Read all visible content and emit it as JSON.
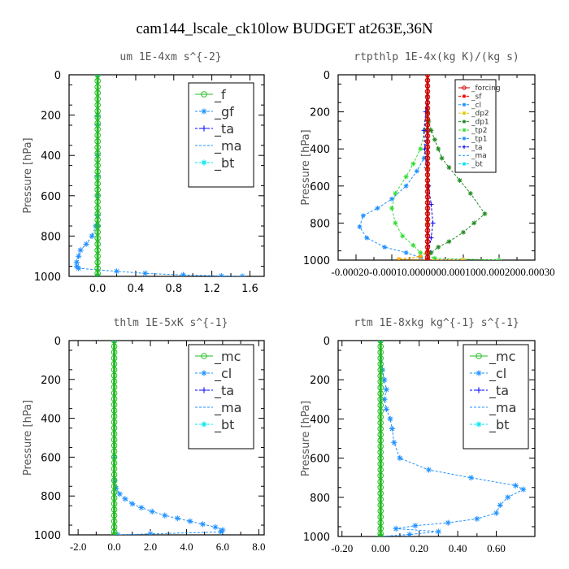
{
  "figure_title": "cam144_lscale_ck10low  BUDGET at263E,36N",
  "chart_data": [
    {
      "type": "line",
      "title": "um  1E-4xm s^{-2}",
      "ylabel": "Pressure [hPa]",
      "ylim": [
        1000,
        0
      ],
      "xlim": [
        -0.3,
        1.75
      ],
      "xticks": [
        "0.0",
        "0.4",
        "0.8",
        "1.2",
        "1.6"
      ],
      "xtick_values": [
        0,
        0.4,
        0.8,
        1.2,
        1.6
      ],
      "yticks": [
        "0",
        "200",
        "400",
        "600",
        "800",
        "1000"
      ],
      "ytick_values": [
        0,
        200,
        400,
        600,
        800,
        1000
      ],
      "legend": [
        "_f",
        "_gf",
        "_ta",
        "_ma",
        "_bt"
      ],
      "series": [
        {
          "name": "_bt",
          "color": "#00e5ee",
          "style": "dashed",
          "marker": "star",
          "x": [
            0,
            0,
            0,
            0,
            0
          ],
          "y": [
            0,
            250,
            500,
            750,
            1000
          ]
        },
        {
          "name": "_ma",
          "color": "#1e90ff",
          "style": "dashed",
          "marker": "none",
          "x": [
            0,
            0,
            0,
            0,
            0
          ],
          "y": [
            0,
            250,
            500,
            750,
            1000
          ]
        },
        {
          "name": "_ta",
          "color": "#0000ff",
          "style": "dashed",
          "marker": "plus",
          "x": [
            0,
            0,
            0,
            0,
            0
          ],
          "y": [
            0,
            250,
            500,
            750,
            1000
          ]
        },
        {
          "name": "_gf",
          "color": "#1e90ff",
          "style": "dashed",
          "marker": "star",
          "x": [
            0,
            0,
            0,
            0,
            0,
            -0.02,
            -0.06,
            -0.12,
            -0.18,
            -0.2,
            -0.22,
            -0.22,
            -0.2,
            0.2,
            0.5,
            0.9,
            1.3,
            1.52
          ],
          "y": [
            0,
            200,
            400,
            600,
            700,
            750,
            800,
            840,
            870,
            900,
            930,
            950,
            960,
            975,
            985,
            993,
            998,
            1000
          ]
        },
        {
          "name": "_f",
          "color": "#22bb22",
          "style": "solid",
          "marker": "circle",
          "x": [
            0,
            0,
            0,
            0,
            0,
            0,
            0,
            0,
            0,
            0,
            0,
            0,
            0,
            0,
            0,
            0,
            0,
            0,
            0,
            0,
            0,
            0,
            0,
            0,
            0,
            0,
            0,
            0,
            0,
            0,
            0,
            0,
            0,
            0,
            0
          ],
          "y": [
            0,
            30,
            60,
            90,
            120,
            150,
            180,
            210,
            240,
            270,
            300,
            330,
            360,
            390,
            420,
            450,
            480,
            510,
            540,
            570,
            600,
            630,
            660,
            690,
            720,
            750,
            780,
            810,
            840,
            870,
            900,
            930,
            960,
            985,
            1000
          ]
        }
      ]
    },
    {
      "type": "line",
      "title": "rtpthlp  1E-4x(kg K)/(kg s)",
      "ylabel": "Pressure [hPa]",
      "ylim": [
        1000,
        0
      ],
      "xlim": [
        -0.00025,
        0.0003
      ],
      "xticks": [
        "-0.00020",
        "-0.00010",
        "0.000000",
        "0.000100",
        "0.000200",
        "0.000300"
      ],
      "xtick_labels_drawn": "-0.00020-0.00010.0000000.0001000.0002000.00030",
      "xtick_values": [
        -0.0002,
        -0.0001,
        0,
        0.0001,
        0.0002,
        0.0003
      ],
      "yticks": [
        "0",
        "200",
        "400",
        "600",
        "800",
        "1000"
      ],
      "ytick_values": [
        0,
        200,
        400,
        600,
        800,
        1000
      ],
      "legend": [
        "_forcing",
        "_sf",
        "_cl",
        "_dp2",
        "_dp1",
        "_tp2",
        "_tp1",
        "_ta",
        "_ma",
        "_bt"
      ],
      "series": [
        {
          "name": "_dp1",
          "color": "#228b22",
          "style": "dashed",
          "marker": "star",
          "x": [
            0,
            0,
            3e-06,
            1e-05,
            2e-05,
            3e-05,
            4e-05,
            6e-05,
            9e-05,
            0.00012,
            0.00016,
            0.00013,
            0.0001,
            6e-05,
            3e-05,
            1e-05,
            0
          ],
          "y": [
            0,
            200,
            250,
            300,
            350,
            400,
            450,
            500,
            570,
            640,
            750,
            800,
            850,
            900,
            930,
            960,
            1000
          ]
        },
        {
          "name": "_tp2",
          "color": "#33dd33",
          "style": "dashed",
          "marker": "star",
          "x": [
            0,
            -2e-06,
            -8e-06,
            -2e-05,
            -4e-05,
            -6e-05,
            -9e-05,
            -0.0001,
            -9e-05,
            -7e-05,
            -4e-05,
            -2e-05,
            2e-05,
            0.0002
          ],
          "y": [
            0,
            200,
            300,
            400,
            480,
            550,
            640,
            720,
            800,
            870,
            920,
            960,
            990,
            1000
          ]
        },
        {
          "name": "_tp1",
          "color": "#1e90ff",
          "style": "dashed",
          "marker": "star",
          "x": [
            0,
            -1e-06,
            -1e-05,
            -3e-05,
            -6e-05,
            -0.0001,
            -0.00014,
            -0.00018,
            -0.00019,
            -0.00017,
            -0.00012,
            -6e-05,
            -2e-05,
            0
          ],
          "y": [
            0,
            300,
            450,
            520,
            600,
            670,
            720,
            760,
            820,
            880,
            930,
            960,
            985,
            1000
          ]
        },
        {
          "name": "_ta",
          "color": "#0000ff",
          "style": "dashed",
          "marker": "plus",
          "x": [
            0,
            -5e-06,
            -1e-05,
            -8e-06,
            -3e-06,
            3e-06,
            1e-05,
            1.5e-05,
            1e-05,
            3e-06,
            0
          ],
          "y": [
            0,
            200,
            300,
            400,
            500,
            600,
            700,
            800,
            880,
            950,
            1000
          ]
        },
        {
          "name": "_cl",
          "color": "#ffa500",
          "style": "dashed",
          "marker": "star",
          "x": [
            0,
            0,
            0,
            0,
            -2e-05,
            -8e-05,
            0.0001
          ],
          "y": [
            0,
            500,
            800,
            950,
            980,
            995,
            1000
          ]
        },
        {
          "name": "_forcing",
          "color": "#cc0000",
          "style": "solid",
          "marker": "circle",
          "x": [
            0,
            0,
            0,
            0,
            0,
            0,
            0,
            0,
            0,
            0,
            0,
            0,
            0,
            0,
            0,
            0,
            0,
            0,
            0,
            0,
            0,
            0,
            0,
            0,
            0,
            0,
            0,
            0,
            0,
            0,
            0,
            0,
            0,
            0,
            0
          ],
          "y": [
            0,
            30,
            60,
            90,
            120,
            150,
            180,
            210,
            240,
            270,
            300,
            330,
            360,
            390,
            420,
            450,
            480,
            510,
            540,
            570,
            600,
            630,
            660,
            690,
            720,
            750,
            780,
            810,
            840,
            870,
            900,
            930,
            960,
            985,
            1000
          ]
        }
      ]
    },
    {
      "type": "line",
      "title": "thlm  1E-5xK s^{-1}",
      "ylabel": "Pressure [hPa]",
      "ylim": [
        1000,
        0
      ],
      "xlim": [
        -2.5,
        8.3
      ],
      "xticks": [
        "-2.0",
        "0.0",
        "2.0",
        "4.0",
        "6.0",
        "8.0"
      ],
      "xtick_values": [
        -2,
        0,
        2,
        4,
        6,
        8
      ],
      "yticks": [
        "0",
        "200",
        "400",
        "600",
        "800",
        "1000"
      ],
      "ytick_values": [
        0,
        200,
        400,
        600,
        800,
        1000
      ],
      "legend": [
        "_mc",
        "_cl",
        "_ta",
        "_ma",
        "_bt"
      ],
      "series": [
        {
          "name": "_cl",
          "color": "#1e90ff",
          "style": "dashed",
          "marker": "star",
          "x": [
            0,
            0,
            0.02,
            0.1,
            0.3,
            0.6,
            1.0,
            1.5,
            2.1,
            2.8,
            3.5,
            4.2,
            4.9,
            5.6,
            6.0,
            5.9,
            2.0,
            0.2
          ],
          "y": [
            0,
            600,
            720,
            760,
            790,
            815,
            840,
            860,
            880,
            900,
            915,
            930,
            945,
            960,
            975,
            985,
            995,
            1000
          ]
        },
        {
          "name": "_mc",
          "color": "#22bb22",
          "style": "solid",
          "marker": "circle",
          "x": [
            0,
            0,
            0,
            0,
            0,
            0,
            0,
            0,
            0,
            0,
            0,
            0,
            0,
            0,
            0,
            0,
            0,
            0,
            0,
            0,
            0,
            0,
            0,
            0,
            0,
            0,
            0,
            0,
            0,
            0,
            0,
            0,
            0,
            0,
            0
          ],
          "y": [
            0,
            30,
            60,
            90,
            120,
            150,
            180,
            210,
            240,
            270,
            300,
            330,
            360,
            390,
            420,
            450,
            480,
            510,
            540,
            570,
            600,
            630,
            660,
            690,
            720,
            750,
            780,
            810,
            840,
            870,
            900,
            930,
            960,
            985,
            1000
          ]
        }
      ]
    },
    {
      "type": "line",
      "title": "rtm  1E-8xkg kg^{-1} s^{-1}",
      "ylabel": "Pressure [hPa]",
      "ylim": [
        1000,
        0
      ],
      "xlim": [
        -0.22,
        0.8
      ],
      "xticks": [
        "-0.20",
        "0.00",
        "0.20",
        "0.40",
        "0.60"
      ],
      "xtick_values": [
        -0.2,
        0,
        0.2,
        0.4,
        0.6
      ],
      "yticks": [
        "0",
        "200",
        "400",
        "600",
        "800",
        "1000"
      ],
      "ytick_values": [
        0,
        200,
        400,
        600,
        800,
        1000
      ],
      "legend": [
        "_mc",
        "_cl",
        "_ta",
        "_ma",
        "_bt"
      ],
      "series": [
        {
          "name": "_cl",
          "color": "#1e90ff",
          "style": "dashed",
          "marker": "star",
          "x": [
            0,
            0.01,
            0.02,
            0.03,
            0.02,
            0.03,
            0.05,
            0.06,
            0.07,
            0.1,
            0.25,
            0.47,
            0.7,
            0.74,
            0.66,
            0.62,
            0.6,
            0.5,
            0.35,
            0.18,
            0.08,
            0.3,
            0.15,
            0
          ],
          "y": [
            0,
            150,
            200,
            250,
            300,
            350,
            400,
            450,
            520,
            600,
            660,
            700,
            740,
            760,
            800,
            840,
            880,
            910,
            930,
            945,
            960,
            975,
            990,
            1000
          ]
        },
        {
          "name": "_mc",
          "color": "#22bb22",
          "style": "solid",
          "marker": "circle",
          "x": [
            0,
            0,
            0,
            0,
            0,
            0,
            0,
            0,
            0,
            0,
            0,
            0,
            0,
            0,
            0,
            0,
            0,
            0,
            0,
            0,
            0,
            0,
            0,
            0,
            0,
            0,
            0,
            0,
            0,
            0,
            0,
            0,
            0,
            0,
            0
          ],
          "y": [
            0,
            30,
            60,
            90,
            120,
            150,
            180,
            210,
            240,
            270,
            300,
            330,
            360,
            390,
            420,
            450,
            480,
            510,
            540,
            570,
            600,
            630,
            660,
            690,
            720,
            750,
            780,
            810,
            840,
            870,
            900,
            930,
            960,
            985,
            1000
          ]
        }
      ]
    }
  ],
  "legend_styles": {
    "_f": {
      "color": "#22bb22",
      "marker": "circle",
      "line": "solid"
    },
    "_gf": {
      "color": "#1e90ff",
      "marker": "star",
      "line": "dashed"
    },
    "_ta": {
      "color": "#0000ff",
      "marker": "plus",
      "line": "dashed"
    },
    "_ma": {
      "color": "#1e90ff",
      "marker": "none",
      "line": "dashed"
    },
    "_bt": {
      "color": "#00e5ee",
      "marker": "star",
      "line": "dashed"
    },
    "_mc": {
      "color": "#22bb22",
      "marker": "circle",
      "line": "solid"
    },
    "_cl": {
      "color": "#1e90ff",
      "marker": "star",
      "line": "dashed"
    },
    "_forcing": {
      "color": "#cc0000",
      "marker": "circle",
      "line": "solid"
    },
    "_sf": {
      "color": "#ff0000",
      "marker": "star",
      "line": "dashed"
    },
    "_dp2": {
      "color": "#ddcc00",
      "marker": "star",
      "line": "dashed"
    },
    "_dp1": {
      "color": "#228b22",
      "marker": "star",
      "line": "dashed"
    },
    "_tp2": {
      "color": "#33dd33",
      "marker": "star",
      "line": "dashed"
    },
    "_tp1": {
      "color": "#1e90ff",
      "marker": "star",
      "line": "dashed"
    }
  }
}
